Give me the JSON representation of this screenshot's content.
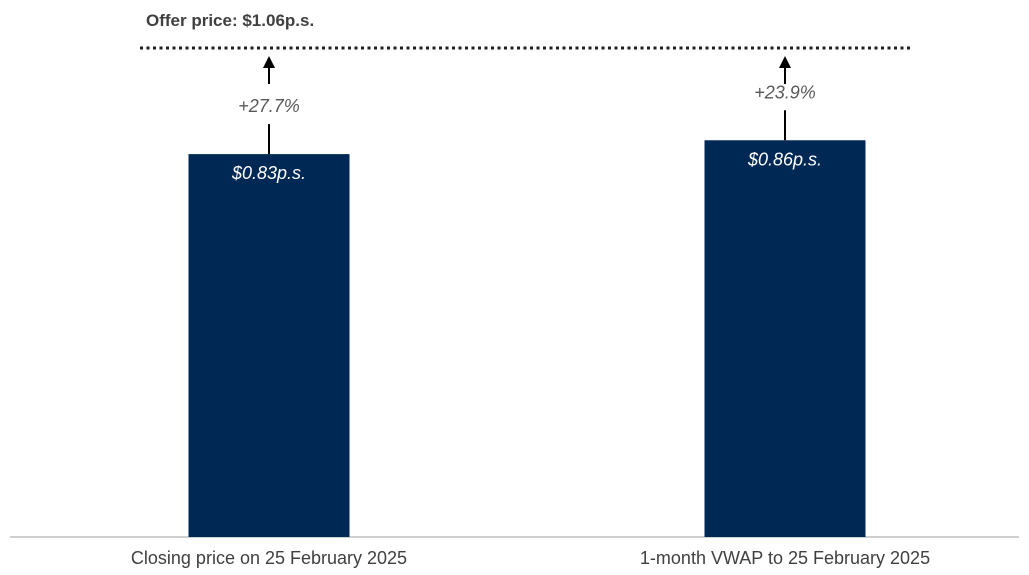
{
  "colors": {
    "bar": "#002855",
    "offer_line": "#1f1f1f",
    "title_text": "#404040",
    "pct_text": "#595959",
    "value_text": "#ffffff",
    "category_text": "#404040",
    "baseline": "#bfbfbf",
    "arrow": "#000000"
  },
  "chart_data": {
    "type": "bar",
    "title": "Offer price: $1.06p.s.",
    "reference_line": {
      "value": 1.06,
      "style": "dotted",
      "label": "Offer price: $1.06p.s."
    },
    "categories": [
      "Closing price on 25 February 2025",
      "1-month VWAP to 25 February 2025"
    ],
    "values": [
      0.83,
      0.86
    ],
    "value_labels": [
      "$0.83p.s.",
      "$0.86p.s."
    ],
    "premium_labels": [
      "+27.7%",
      "+23.9%"
    ],
    "ylim": [
      0,
      1.06
    ],
    "grid": false
  }
}
